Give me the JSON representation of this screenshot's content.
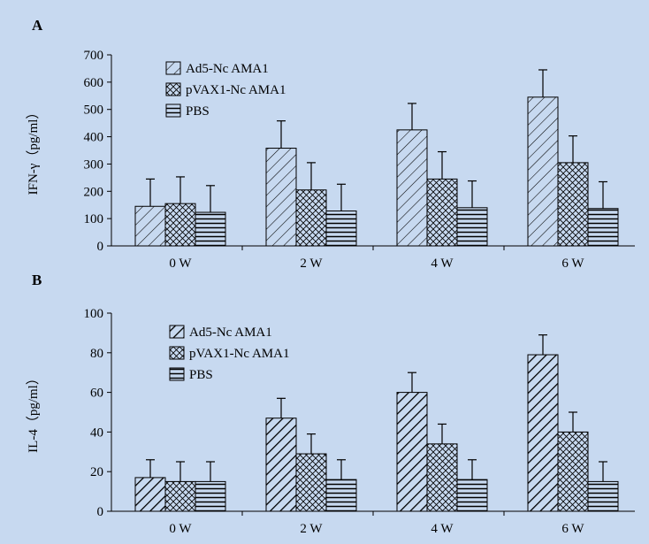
{
  "figure": {
    "background_color": "#c7d9f0",
    "bar_fill": "#c7d9f0",
    "edge_color": "#000000"
  },
  "chart_data": [
    {
      "type": "bar",
      "panel_label": "A",
      "ylabel": "IFN-γ（pg/ml）",
      "xlabel": "",
      "categories": [
        "0 W",
        "2 W",
        "4 W",
        "6 W"
      ],
      "ylim": [
        0,
        700
      ],
      "yticks": [
        0,
        100,
        200,
        300,
        400,
        500,
        600,
        700
      ],
      "series": [
        {
          "name": "Ad5-Nc AMA1",
          "pattern": "diagonal",
          "values": [
            145,
            358,
            425,
            545
          ],
          "errors": [
            100,
            100,
            97,
            100
          ]
        },
        {
          "name": "pVAX1-Nc AMA1",
          "pattern": "crosshatch",
          "values": [
            155,
            205,
            245,
            305
          ],
          "errors": [
            98,
            100,
            100,
            98
          ]
        },
        {
          "name": "PBS",
          "pattern": "horizontal",
          "values": [
            123,
            128,
            140,
            137
          ],
          "errors": [
            98,
            98,
            98,
            98
          ]
        }
      ],
      "legend_position": "top-left"
    },
    {
      "type": "bar",
      "panel_label": "B",
      "ylabel": "IL-4（pg/ml）",
      "xlabel": "",
      "categories": [
        "0 W",
        "2 W",
        "4 W",
        "6 W"
      ],
      "ylim": [
        0,
        100
      ],
      "yticks": [
        0,
        20,
        40,
        60,
        80,
        100
      ],
      "series": [
        {
          "name": "Ad5-Nc AMA1",
          "pattern": "diagonal-bold",
          "values": [
            17,
            47,
            60,
            79
          ],
          "errors": [
            9,
            10,
            10,
            10
          ]
        },
        {
          "name": "pVAX1-Nc AMA1",
          "pattern": "crosshatch",
          "values": [
            15,
            29,
            34,
            40
          ],
          "errors": [
            10,
            10,
            10,
            10
          ]
        },
        {
          "name": "PBS",
          "pattern": "horizontal",
          "values": [
            15,
            16,
            16,
            15
          ],
          "errors": [
            10,
            10,
            10,
            10
          ]
        }
      ],
      "legend_position": "top-left"
    }
  ]
}
